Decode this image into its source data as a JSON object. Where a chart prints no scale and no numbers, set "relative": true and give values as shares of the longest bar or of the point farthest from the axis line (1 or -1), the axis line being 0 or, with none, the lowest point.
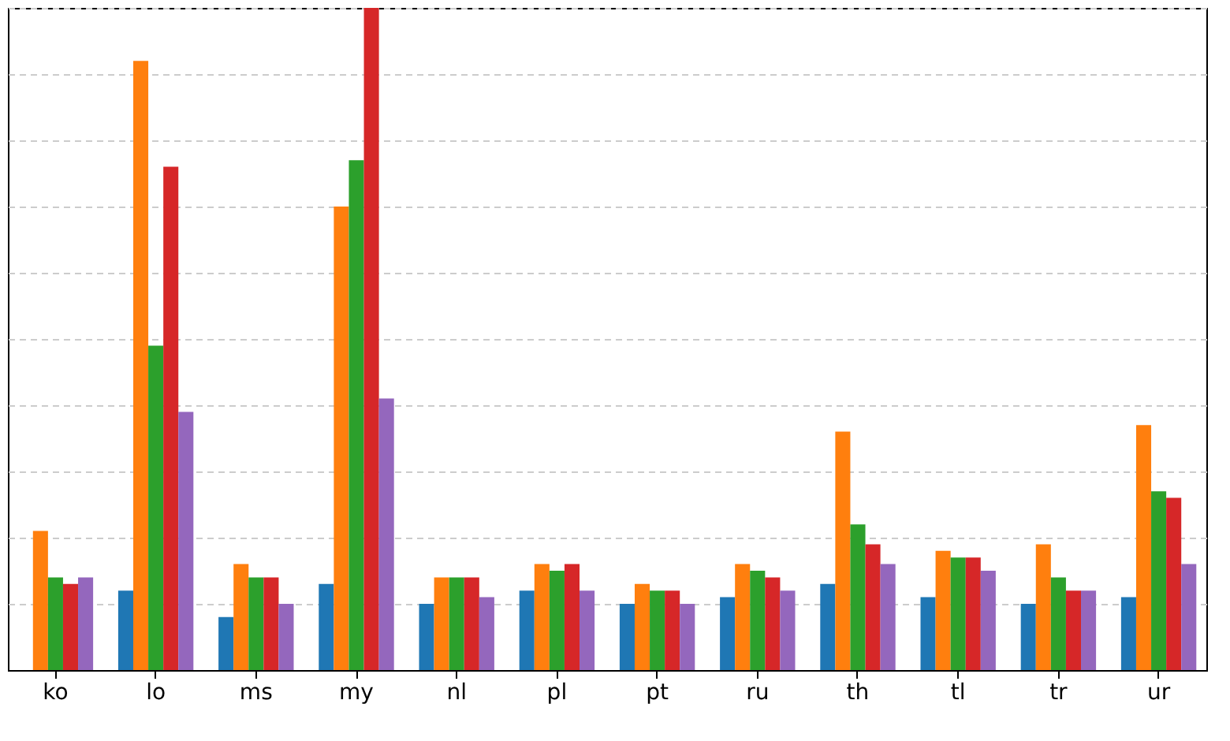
{
  "chart_data": {
    "type": "bar",
    "relative": true,
    "grid": "y",
    "legend": false,
    "categories": [
      "ko",
      "lo",
      "ms",
      "my",
      "nl",
      "pl",
      "pt",
      "ru",
      "th",
      "tl",
      "tr",
      "ur"
    ],
    "series": [
      {
        "color": "#1f77b4",
        "values": [
          null,
          0.12,
          0.08,
          0.13,
          0.1,
          0.12,
          0.1,
          0.11,
          0.13,
          0.11,
          0.1,
          0.11
        ]
      },
      {
        "color": "#ff7f0e",
        "values": [
          0.21,
          0.92,
          0.16,
          0.7,
          0.14,
          0.16,
          0.13,
          0.16,
          0.36,
          0.18,
          0.19,
          0.37
        ]
      },
      {
        "color": "#2ca02c",
        "values": [
          0.14,
          0.49,
          0.14,
          0.77,
          0.14,
          0.15,
          0.12,
          0.15,
          0.22,
          0.17,
          0.14,
          0.27
        ]
      },
      {
        "color": "#d62728",
        "values": [
          0.13,
          0.76,
          0.14,
          1.0,
          0.14,
          0.16,
          0.12,
          0.14,
          0.19,
          0.17,
          0.12,
          0.26
        ]
      },
      {
        "color": "#9467bd",
        "values": [
          0.14,
          0.39,
          0.1,
          0.41,
          0.11,
          0.12,
          0.1,
          0.12,
          0.16,
          0.15,
          0.12,
          0.16
        ]
      }
    ]
  }
}
